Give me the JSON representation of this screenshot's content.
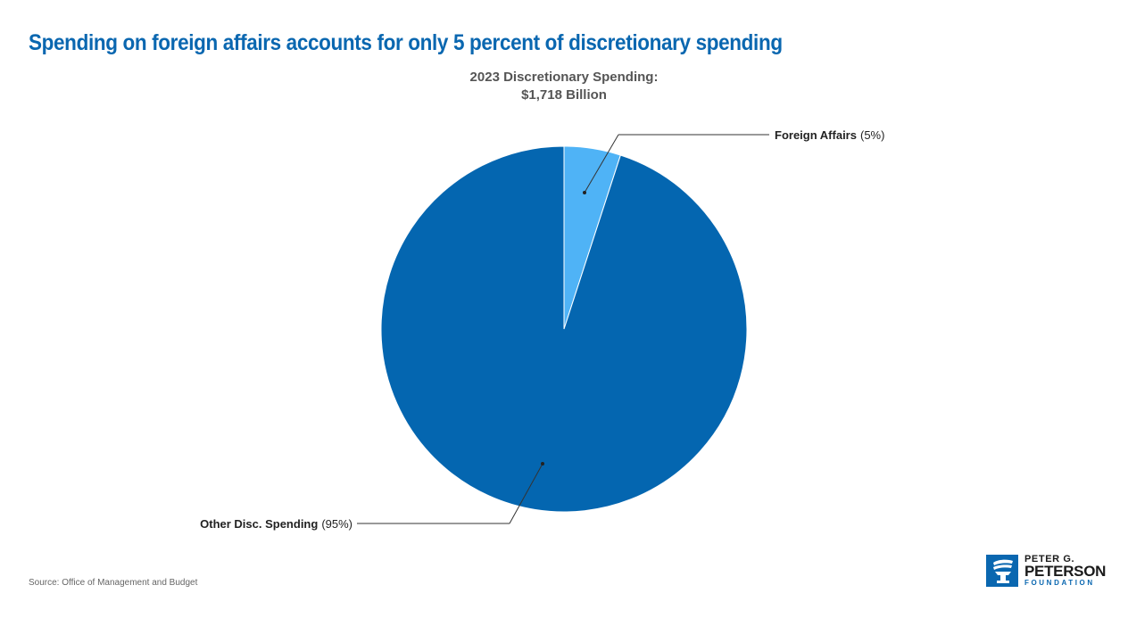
{
  "header": {
    "title": "Spending on foreign affairs accounts for only 5 percent of discretionary spending"
  },
  "chart_data": {
    "type": "pie",
    "subtitle_lines": [
      "2023 Discretionary Spending:",
      "$1,718 Billion"
    ],
    "slices": [
      {
        "name": "Foreign Affairs",
        "pct_label": "(5%)",
        "value": 5,
        "color": "#4fb3f6"
      },
      {
        "name": "Other Disc. Spending",
        "pct_label": "(95%)",
        "value": 95,
        "color": "#0466b0"
      }
    ]
  },
  "footer": {
    "source": "Source: Office of Management and Budget"
  },
  "logo": {
    "line1": "PETER G.",
    "line2": "PETERSON",
    "line3": "FOUNDATION",
    "color": "#0a67b0"
  }
}
